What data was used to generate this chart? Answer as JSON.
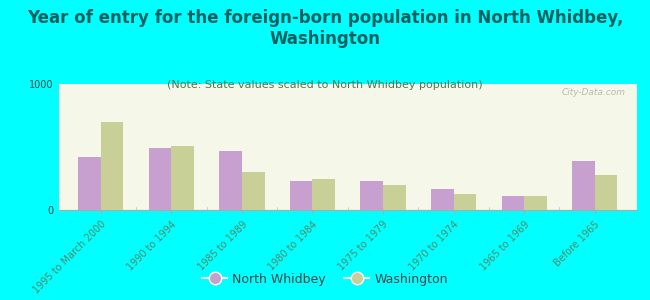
{
  "title": "Year of entry for the foreign-born population in North Whidbey,\nWashington",
  "subtitle": "(Note: State values scaled to North Whidbey population)",
  "categories": [
    "1995 to March 2000",
    "1990 to 1994",
    "1985 to 1989",
    "1980 to 1984",
    "1975 to 1979",
    "1970 to 1974",
    "1965 to 1969",
    "Before 1965"
  ],
  "north_whidbey": [
    420,
    490,
    470,
    230,
    230,
    170,
    110,
    390
  ],
  "washington": [
    700,
    510,
    305,
    245,
    195,
    130,
    115,
    275
  ],
  "bar_color_nw": "#c8a0d0",
  "bar_color_wa": "#c8d098",
  "background_color": "#00ffff",
  "plot_bg_start": "#f5f8e8",
  "plot_bg_end": "#e8f0d0",
  "ylim": [
    0,
    1000
  ],
  "title_fontsize": 12,
  "subtitle_fontsize": 8,
  "tick_label_fontsize": 7,
  "legend_fontsize": 9,
  "title_color": "#006060",
  "subtitle_color": "#557755",
  "tick_color": "#558866",
  "watermark": "City-Data.com"
}
